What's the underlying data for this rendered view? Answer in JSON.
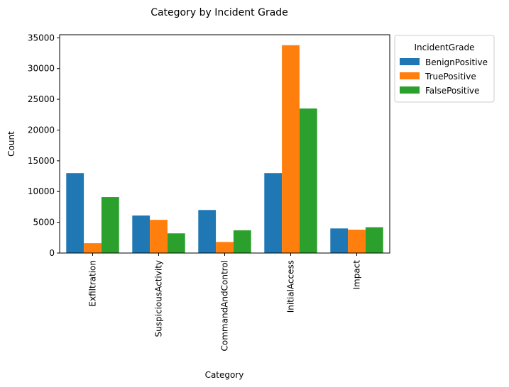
{
  "chart_data": {
    "type": "bar",
    "title": "Category by Incident Grade",
    "xlabel": "Category",
    "ylabel": "Count",
    "categories": [
      "Exfiltration",
      "SuspiciousActivity",
      "CommandAndControl",
      "InitialAccess",
      "Impact"
    ],
    "series": [
      {
        "name": "BenignPositive",
        "color": "#1f77b4",
        "values": [
          13000,
          6100,
          7000,
          13000,
          4000
        ]
      },
      {
        "name": "TruePositive",
        "color": "#ff7f0e",
        "values": [
          1600,
          5400,
          1800,
          33800,
          3800
        ]
      },
      {
        "name": "FalsePositive",
        "color": "#2ca02c",
        "values": [
          9100,
          3200,
          3700,
          23500,
          4200
        ]
      }
    ],
    "ylim": [
      0,
      35500
    ],
    "yticks": [
      0,
      5000,
      10000,
      15000,
      20000,
      25000,
      30000,
      35000
    ],
    "legend": {
      "title": "IncidentGrade",
      "placement": "outside-top-right"
    },
    "grid": false
  }
}
